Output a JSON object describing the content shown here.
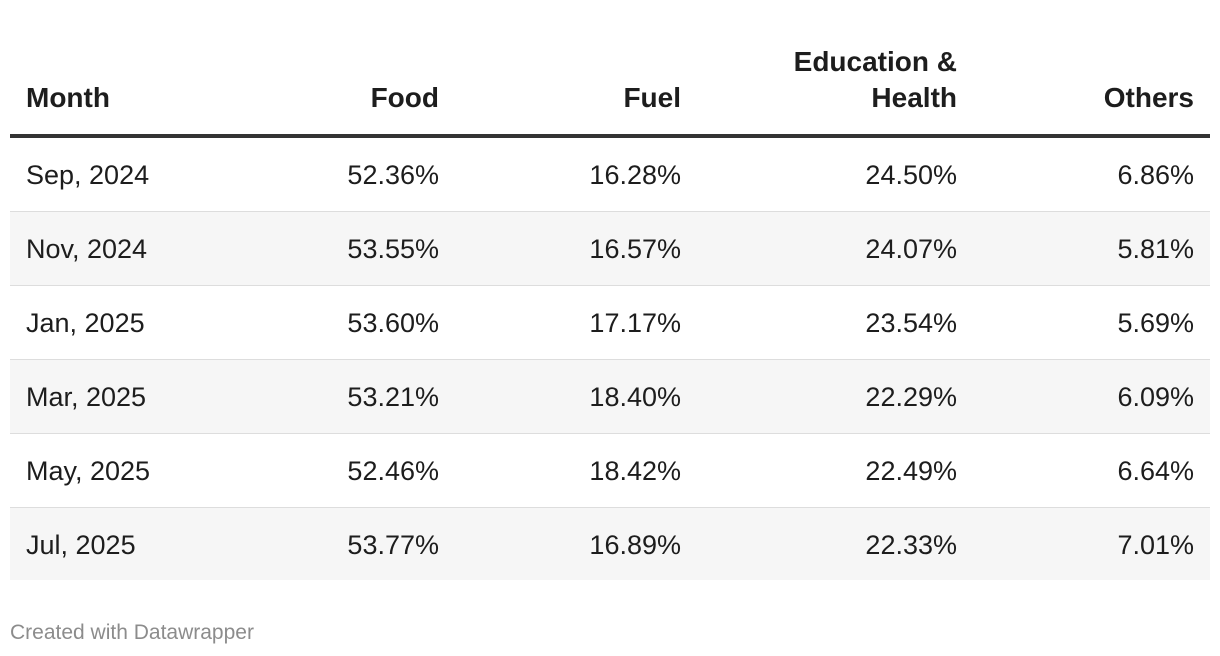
{
  "chart_data": {
    "type": "table",
    "columns": [
      "Month",
      "Food",
      "Fuel",
      "Education & Health",
      "Others"
    ],
    "column_header_lines": [
      [
        "Month"
      ],
      [
        "Food"
      ],
      [
        "Fuel"
      ],
      [
        "Education &",
        "Health"
      ],
      [
        "Others"
      ]
    ],
    "rows": [
      {
        "month": "Sep, 2024",
        "food": "52.36%",
        "fuel": "16.28%",
        "edu": "24.50%",
        "others": "6.86%"
      },
      {
        "month": "Nov, 2024",
        "food": "53.55%",
        "fuel": "16.57%",
        "edu": "24.07%",
        "others": "5.81%"
      },
      {
        "month": "Jan, 2025",
        "food": "53.60%",
        "fuel": "17.17%",
        "edu": "23.54%",
        "others": "5.69%"
      },
      {
        "month": "Mar, 2025",
        "food": "53.21%",
        "fuel": "18.40%",
        "edu": "22.29%",
        "others": "6.09%"
      },
      {
        "month": "May, 2025",
        "food": "52.46%",
        "fuel": "18.42%",
        "edu": "22.49%",
        "others": "6.64%"
      },
      {
        "month": "Jul, 2025",
        "food": "53.77%",
        "fuel": "16.89%",
        "edu": "22.33%",
        "others": "7.01%"
      }
    ],
    "values": {
      "Food": [
        52.36,
        53.55,
        53.6,
        53.21,
        52.46,
        53.77
      ],
      "Fuel": [
        16.28,
        16.57,
        17.17,
        18.4,
        18.42,
        16.89
      ],
      "Education & Health": [
        24.5,
        24.07,
        23.54,
        22.29,
        22.49,
        22.33
      ],
      "Others": [
        6.86,
        5.81,
        5.69,
        6.09,
        6.64,
        7.01
      ]
    }
  },
  "footer": {
    "credit": "Created with Datawrapper"
  },
  "colors": {
    "text": "#1d1d1d",
    "header_rule": "#333333",
    "stripe": "#f6f6f6",
    "divider": "#dddddd",
    "footer_text": "#8c8c8c"
  }
}
